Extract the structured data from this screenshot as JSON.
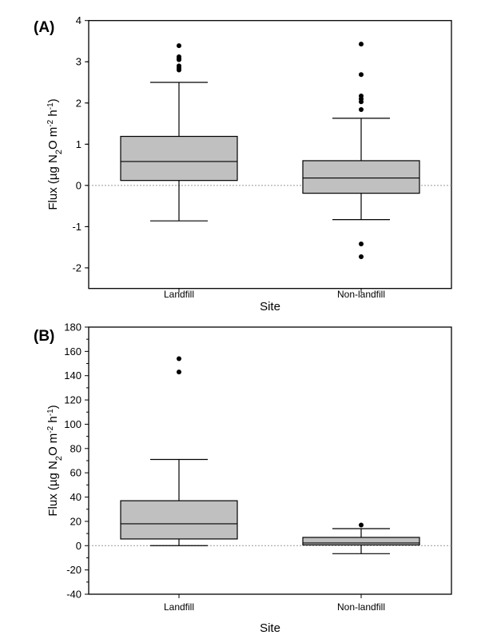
{
  "chart_data": [
    {
      "type": "box",
      "panel_label": "(A)",
      "xlabel": "Site",
      "ylabel": "Flux (µg N2O m-2 h-1)",
      "ylim": [
        -2.5,
        4
      ],
      "yticks": [
        -2,
        -1,
        0,
        1,
        2,
        3,
        4
      ],
      "ytick_labels": [
        "-2",
        "-1",
        "0",
        "1",
        "2",
        "3",
        "4"
      ],
      "reference_line": 0,
      "categories": [
        "Landfill",
        "Non-landfill"
      ],
      "boxes": [
        {
          "name": "Landfill",
          "whisker_low": -0.86,
          "q1": 0.12,
          "median": 0.58,
          "q3": 1.19,
          "whisker_high": 2.5,
          "outliers": [
            2.8,
            2.85,
            2.9,
            3.05,
            3.08,
            3.12,
            3.39
          ]
        },
        {
          "name": "Non-landfill",
          "whisker_low": -0.83,
          "q1": -0.19,
          "median": 0.18,
          "q3": 0.6,
          "whisker_high": 1.63,
          "outliers": [
            -1.73,
            -1.42,
            1.84,
            2.03,
            2.1,
            2.17,
            2.69,
            3.43
          ]
        }
      ]
    },
    {
      "type": "box",
      "panel_label": "(B)",
      "xlabel": "Site",
      "ylabel": "Flux (µg N2O m-2 h-1)",
      "ylim": [
        -40,
        180
      ],
      "yticks": [
        -40,
        -20,
        0,
        20,
        40,
        60,
        80,
        100,
        120,
        140,
        160,
        180
      ],
      "ytick_labels": [
        "-40",
        "-20",
        "0",
        "20",
        "40",
        "60",
        "80",
        "100",
        "120",
        "140",
        "160",
        "180"
      ],
      "reference_line": 0,
      "categories": [
        "Landfill",
        "Non-landfill"
      ],
      "boxes": [
        {
          "name": "Landfill",
          "whisker_low": 0,
          "q1": 5.5,
          "median": 18,
          "q3": 37,
          "whisker_high": 71,
          "outliers": [
            143,
            154
          ]
        },
        {
          "name": "Non-landfill",
          "whisker_low": -6.6,
          "q1": 0.6,
          "median": 2.2,
          "q3": 6.8,
          "whisker_high": 14,
          "outliers": [
            17
          ]
        }
      ]
    }
  ],
  "colors": {
    "box_fill": "#c0c0c0",
    "line": "#000000",
    "reference": "#999999"
  }
}
